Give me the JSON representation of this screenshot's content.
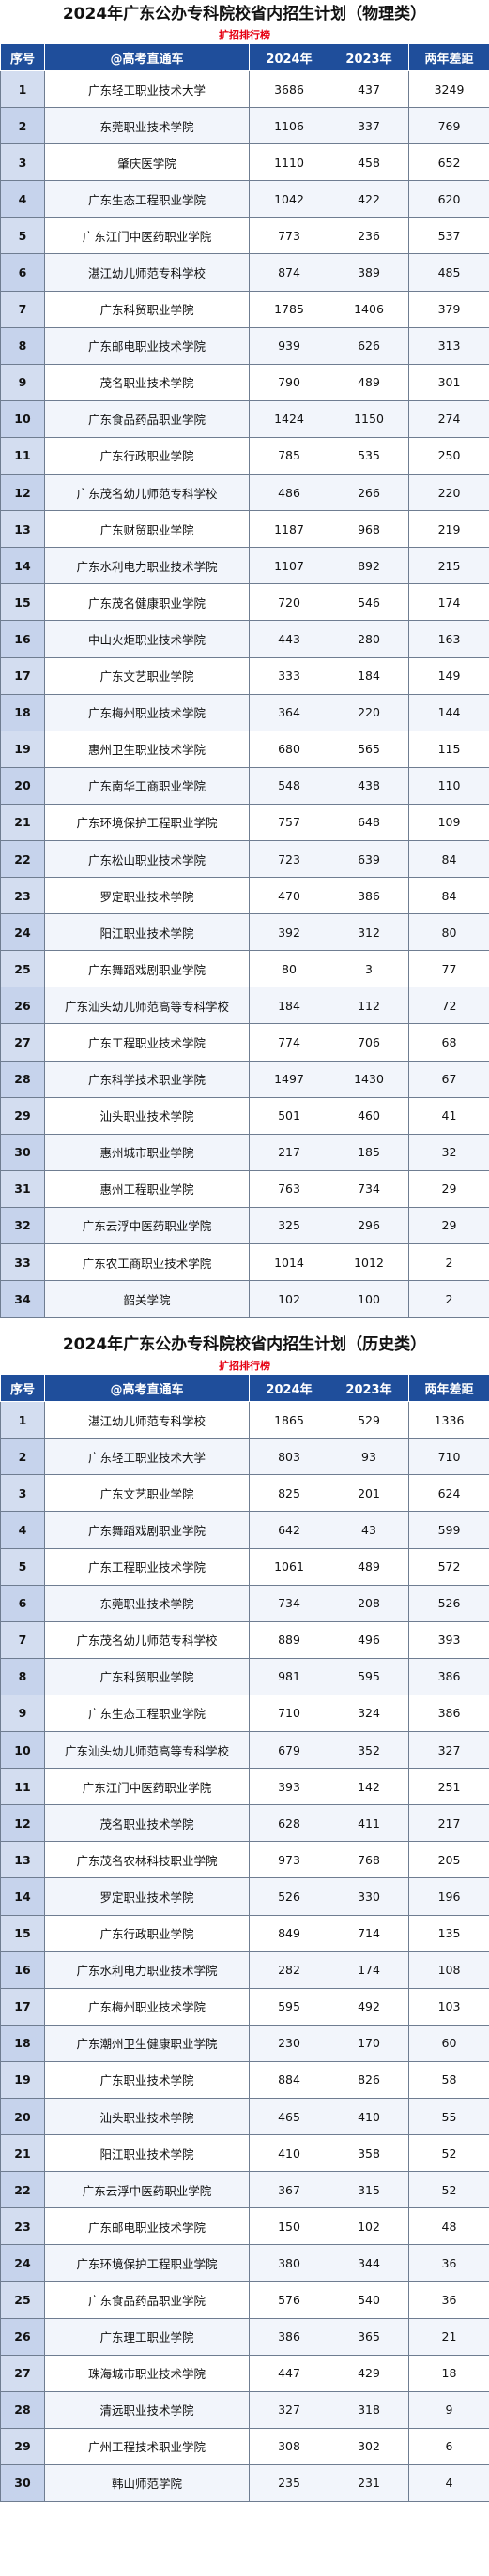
{
  "physics": {
    "title": "2024年广东公办专科院校省内招生计划（物理类）",
    "subtitle": "扩招排行榜",
    "headers": [
      "序号",
      "@高考直通车",
      "2024年",
      "2023年",
      "两年差距"
    ],
    "rows": [
      [
        "1",
        "广东轻工职业技术大学",
        "3686",
        "437",
        "3249"
      ],
      [
        "2",
        "东莞职业技术学院",
        "1106",
        "337",
        "769"
      ],
      [
        "3",
        "肇庆医学院",
        "1110",
        "458",
        "652"
      ],
      [
        "4",
        "广东生态工程职业学院",
        "1042",
        "422",
        "620"
      ],
      [
        "5",
        "广东江门中医药职业学院",
        "773",
        "236",
        "537"
      ],
      [
        "6",
        "湛江幼儿师范专科学校",
        "874",
        "389",
        "485"
      ],
      [
        "7",
        "广东科贸职业学院",
        "1785",
        "1406",
        "379"
      ],
      [
        "8",
        "广东邮电职业技术学院",
        "939",
        "626",
        "313"
      ],
      [
        "9",
        "茂名职业技术学院",
        "790",
        "489",
        "301"
      ],
      [
        "10",
        "广东食品药品职业学院",
        "1424",
        "1150",
        "274"
      ],
      [
        "11",
        "广东行政职业学院",
        "785",
        "535",
        "250"
      ],
      [
        "12",
        "广东茂名幼儿师范专科学校",
        "486",
        "266",
        "220"
      ],
      [
        "13",
        "广东财贸职业学院",
        "1187",
        "968",
        "219"
      ],
      [
        "14",
        "广东水利电力职业技术学院",
        "1107",
        "892",
        "215"
      ],
      [
        "15",
        "广东茂名健康职业学院",
        "720",
        "546",
        "174"
      ],
      [
        "16",
        "中山火炬职业技术学院",
        "443",
        "280",
        "163"
      ],
      [
        "17",
        "广东文艺职业学院",
        "333",
        "184",
        "149"
      ],
      [
        "18",
        "广东梅州职业技术学院",
        "364",
        "220",
        "144"
      ],
      [
        "19",
        "惠州卫生职业技术学院",
        "680",
        "565",
        "115"
      ],
      [
        "20",
        "广东南华工商职业学院",
        "548",
        "438",
        "110"
      ],
      [
        "21",
        "广东环境保护工程职业学院",
        "757",
        "648",
        "109"
      ],
      [
        "22",
        "广东松山职业技术学院",
        "723",
        "639",
        "84"
      ],
      [
        "23",
        "罗定职业技术学院",
        "470",
        "386",
        "84"
      ],
      [
        "24",
        "阳江职业技术学院",
        "392",
        "312",
        "80"
      ],
      [
        "25",
        "广东舞蹈戏剧职业学院",
        "80",
        "3",
        "77"
      ],
      [
        "26",
        "广东汕头幼儿师范高等专科学校",
        "184",
        "112",
        "72"
      ],
      [
        "27",
        "广东工程职业技术学院",
        "774",
        "706",
        "68"
      ],
      [
        "28",
        "广东科学技术职业学院",
        "1497",
        "1430",
        "67"
      ],
      [
        "29",
        "汕头职业技术学院",
        "501",
        "460",
        "41"
      ],
      [
        "30",
        "惠州城市职业学院",
        "217",
        "185",
        "32"
      ],
      [
        "31",
        "惠州工程职业学院",
        "763",
        "734",
        "29"
      ],
      [
        "32",
        "广东云浮中医药职业学院",
        "325",
        "296",
        "29"
      ],
      [
        "33",
        "广东农工商职业技术学院",
        "1014",
        "1012",
        "2"
      ],
      [
        "34",
        "韶关学院",
        "102",
        "100",
        "2"
      ]
    ]
  },
  "history": {
    "title": "2024年广东公办专科院校省内招生计划（历史类）",
    "subtitle": "扩招排行榜",
    "headers": [
      "序号",
      "@高考直通车",
      "2024年",
      "2023年",
      "两年差距"
    ],
    "rows": [
      [
        "1",
        "湛江幼儿师范专科学校",
        "1865",
        "529",
        "1336"
      ],
      [
        "2",
        "广东轻工职业技术大学",
        "803",
        "93",
        "710"
      ],
      [
        "3",
        "广东文艺职业学院",
        "825",
        "201",
        "624"
      ],
      [
        "4",
        "广东舞蹈戏剧职业学院",
        "642",
        "43",
        "599"
      ],
      [
        "5",
        "广东工程职业技术学院",
        "1061",
        "489",
        "572"
      ],
      [
        "6",
        "东莞职业技术学院",
        "734",
        "208",
        "526"
      ],
      [
        "7",
        "广东茂名幼儿师范专科学校",
        "889",
        "496",
        "393"
      ],
      [
        "8",
        "广东科贸职业学院",
        "981",
        "595",
        "386"
      ],
      [
        "9",
        "广东生态工程职业学院",
        "710",
        "324",
        "386"
      ],
      [
        "10",
        "广东汕头幼儿师范高等专科学校",
        "679",
        "352",
        "327"
      ],
      [
        "11",
        "广东江门中医药职业学院",
        "393",
        "142",
        "251"
      ],
      [
        "12",
        "茂名职业技术学院",
        "628",
        "411",
        "217"
      ],
      [
        "13",
        "广东茂名农林科技职业学院",
        "973",
        "768",
        "205"
      ],
      [
        "14",
        "罗定职业技术学院",
        "526",
        "330",
        "196"
      ],
      [
        "15",
        "广东行政职业学院",
        "849",
        "714",
        "135"
      ],
      [
        "16",
        "广东水利电力职业技术学院",
        "282",
        "174",
        "108"
      ],
      [
        "17",
        "广东梅州职业技术学院",
        "595",
        "492",
        "103"
      ],
      [
        "18",
        "广东潮州卫生健康职业学院",
        "230",
        "170",
        "60"
      ],
      [
        "19",
        "广东职业技术学院",
        "884",
        "826",
        "58"
      ],
      [
        "20",
        "汕头职业技术学院",
        "465",
        "410",
        "55"
      ],
      [
        "21",
        "阳江职业技术学院",
        "410",
        "358",
        "52"
      ],
      [
        "22",
        "广东云浮中医药职业学院",
        "367",
        "315",
        "52"
      ],
      [
        "23",
        "广东邮电职业技术学院",
        "150",
        "102",
        "48"
      ],
      [
        "24",
        "广东环境保护工程职业学院",
        "380",
        "344",
        "36"
      ],
      [
        "25",
        "广东食品药品职业学院",
        "576",
        "540",
        "36"
      ],
      [
        "26",
        "广东理工职业学院",
        "386",
        "365",
        "21"
      ],
      [
        "27",
        "珠海城市职业技术学院",
        "447",
        "429",
        "18"
      ],
      [
        "28",
        "清远职业技术学院",
        "327",
        "318",
        "9"
      ],
      [
        "29",
        "广州工程技术职业学院",
        "308",
        "302",
        "6"
      ],
      [
        "30",
        "韩山师范学院",
        "235",
        "231",
        "4"
      ]
    ]
  }
}
